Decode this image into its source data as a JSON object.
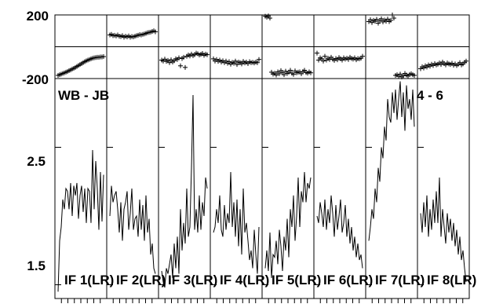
{
  "chart_data": {
    "type": "line",
    "baseline_label": "WB - JB",
    "time_label": "4 - 6",
    "phase_axis": {
      "ylim": [
        -200,
        200
      ],
      "ticks": [
        "200",
        "-200"
      ]
    },
    "amplitude_axis": {
      "ylim": [
        1.4,
        3.0
      ],
      "ticks": [
        "2.5",
        "1.5"
      ]
    },
    "series": [
      {
        "label": "IF 1(LR)",
        "phase": [
          -180,
          -176,
          -172,
          -168,
          -164,
          -160,
          -156,
          -150,
          -146,
          -140,
          -136,
          -130,
          -124,
          -118,
          -112,
          -106,
          -100,
          -94,
          -88,
          -84,
          -80,
          -76,
          -72,
          -70,
          -68,
          -66,
          -66,
          -64,
          -64,
          -62
        ],
        "amplitude": [
          1.45,
          1.82,
          1.92,
          2.12,
          2.05,
          2.2,
          2.18,
          2.05,
          2.24,
          2.0,
          2.22,
          2.15,
          2.24,
          1.98,
          2.15,
          2.22,
          2.03,
          2.2,
          1.95,
          2.2,
          2.18,
          1.95,
          2.48,
          2.05,
          2.4,
          2.2,
          1.9,
          2.32,
          1.96,
          2.3
        ]
      },
      {
        "label": "IF 2(LR)",
        "phase": [
          74,
          78,
          70,
          72,
          68,
          74,
          66,
          64,
          70,
          60,
          66,
          62,
          68,
          60,
          64,
          62,
          66,
          70,
          72,
          76,
          74,
          78,
          80,
          84,
          88,
          90,
          92,
          96,
          100,
          94
        ],
        "amplitude": [
          2.0,
          2.22,
          2.1,
          2.15,
          2.18,
          2.05,
          1.88,
          2.1,
          1.82,
          2.05,
          2.1,
          2.18,
          1.9,
          2.02,
          2.2,
          1.9,
          1.98,
          2.0,
          1.85,
          2.12,
          1.9,
          2.08,
          1.82,
          2.15,
          1.88,
          1.98,
          1.72,
          1.8,
          1.62,
          1.58
        ]
      },
      {
        "label": "IF 3(LR)",
        "phase": [
          -84,
          -90,
          -78,
          -92,
          -86,
          -100,
          -82,
          -96,
          -88,
          -76,
          -80,
          -70,
          -120,
          -74,
          -66,
          -130,
          -60,
          -52,
          -58,
          -46,
          -56,
          -50,
          -40,
          -44,
          -52,
          -48,
          -42,
          -54,
          -46,
          -50
        ],
        "amplitude": [
          1.6,
          1.52,
          1.48,
          1.62,
          1.58,
          1.65,
          1.72,
          1.55,
          1.8,
          1.62,
          1.85,
          1.58,
          2.05,
          1.75,
          1.95,
          1.8,
          2.2,
          1.85,
          1.92,
          2.35,
          2.88,
          1.9,
          2.05,
          1.88,
          2.15,
          1.9,
          2.1,
          2.0,
          2.28,
          2.2
        ]
      },
      {
        "label": "IF 4(LR)",
        "phase": [
          -76,
          -90,
          -80,
          -92,
          -84,
          -96,
          -88,
          -100,
          -90,
          -104,
          -94,
          -110,
          -98,
          -104,
          -90,
          -112,
          -96,
          -100,
          -108,
          -92,
          -102,
          -96,
          -106,
          -94,
          -100,
          -98,
          -102,
          -96,
          -100,
          -80
        ],
        "amplitude": [
          1.88,
          1.92,
          2.05,
          1.95,
          2.15,
          1.9,
          1.85,
          2.08,
          1.9,
          2.02,
          1.95,
          2.32,
          1.92,
          2.1,
          1.85,
          2.12,
          1.78,
          2.05,
          1.72,
          2.2,
          1.88,
          1.95,
          1.82,
          1.68,
          1.75,
          1.62,
          1.9,
          1.72,
          1.58,
          1.92
        ]
      },
      {
        "label": "IF 5(LR)",
        "phase": [
          192,
          186,
          194,
          180,
          -160,
          -172,
          -166,
          -178,
          -158,
          -170,
          -150,
          -162,
          -176,
          -154,
          -168,
          -160,
          -148,
          -166,
          -174,
          -152,
          -164,
          -160,
          -158,
          -170,
          -156,
          -148,
          -162,
          -166,
          -158,
          -164
        ],
        "amplitude": [
          1.62,
          1.75,
          1.6,
          1.88,
          1.55,
          1.72,
          1.7,
          1.82,
          1.65,
          1.9,
          1.78,
          1.6,
          1.85,
          1.75,
          1.98,
          1.7,
          2.05,
          1.92,
          2.15,
          1.82,
          2.0,
          2.28,
          1.92,
          2.18,
          2.1,
          2.32,
          2.1,
          2.24,
          2.2,
          2.28
        ]
      },
      {
        "label": "IF 6(LR)",
        "phase": [
          -40,
          -84,
          -70,
          -76,
          -90,
          -60,
          -84,
          -72,
          -80,
          -66,
          -78,
          -86,
          -74,
          -82,
          -68,
          -76,
          -84,
          -70,
          -78,
          -72,
          -80,
          -66,
          -74,
          -78,
          -70,
          -82,
          -74,
          -76,
          -72,
          -60
        ],
        "amplitude": [
          2.0,
          1.95,
          2.1,
          2.02,
          1.92,
          2.12,
          1.9,
          2.05,
          1.95,
          2.15,
          2.02,
          1.85,
          2.08,
          1.9,
          2.0,
          2.12,
          1.88,
          1.95,
          2.08,
          1.85,
          1.98,
          1.8,
          1.92,
          1.75,
          1.85,
          1.7,
          1.8,
          1.68,
          1.72,
          1.62
        ]
      },
      {
        "label": "IF 7(LR)",
        "phase": [
          158,
          170,
          152,
          166,
          160,
          172,
          148,
          164,
          176,
          156,
          168,
          160,
          174,
          158,
          166,
          200,
          180,
          -180,
          -176,
          -186,
          -172,
          -190,
          -182,
          -168,
          -178,
          -184,
          -174,
          -170,
          -176,
          -180
        ],
        "amplitude": [
          1.82,
          1.92,
          2.05,
          1.98,
          2.2,
          2.1,
          2.35,
          2.25,
          2.5,
          2.42,
          2.65,
          2.55,
          2.85,
          2.72,
          2.68,
          2.9,
          2.75,
          2.92,
          2.7,
          2.85,
          2.98,
          2.72,
          2.9,
          2.62,
          2.95,
          2.78,
          2.85,
          2.7,
          2.92,
          2.65
        ]
      },
      {
        "label": "IF 8(LR)",
        "phase": [
          -138,
          -126,
          -134,
          -120,
          -128,
          -114,
          -122,
          -110,
          -118,
          -106,
          -114,
          -110,
          -102,
          -112,
          -96,
          -106,
          -114,
          -102,
          -108,
          -112,
          -104,
          -116,
          -108,
          -118,
          -110,
          -100,
          -114,
          -108,
          -98,
          -90
        ],
        "amplitude": [
          2.02,
          1.88,
          2.1,
          1.92,
          2.15,
          1.85,
          2.05,
          1.9,
          2.12,
          1.95,
          2.18,
          1.95,
          2.28,
          1.85,
          2.05,
          1.92,
          1.8,
          2.02,
          1.88,
          1.98,
          1.82,
          1.95,
          1.78,
          1.9,
          1.72,
          1.85,
          1.68,
          1.75,
          1.62,
          1.52
        ]
      }
    ]
  }
}
